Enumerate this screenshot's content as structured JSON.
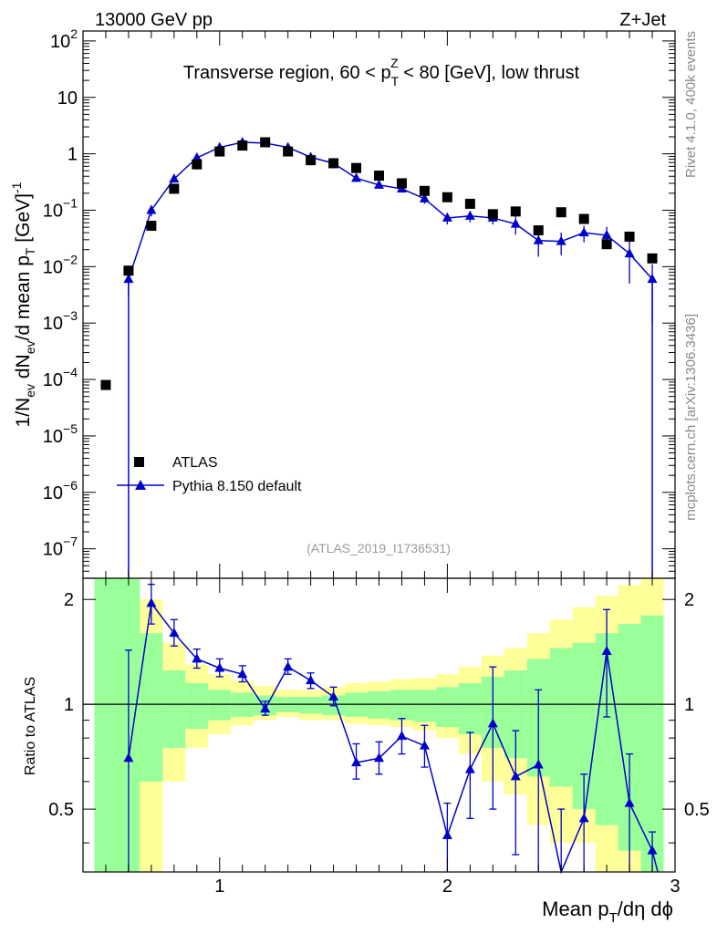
{
  "header": {
    "left": "13000 GeV pp",
    "right": "Z+Jet"
  },
  "side_labels": {
    "rivet": "Rivet 4.1.0,  400k events",
    "mcplots": "mcplots.cern.ch [arXiv:1306.3436]"
  },
  "chart_data": [
    {
      "type": "scatter",
      "title": "Transverse region, 60 < p_T^Z < 80 [GeV], low thrust",
      "title_parts": {
        "a": "Transverse region, 60 < p",
        "sup": "Z",
        "sub": "T",
        "b": " < 80 [GeV], low thrust"
      },
      "analysis_label": "(ATLAS_2019_I1736531)",
      "ylabel": "1/N_ev dN_ev/d mean p_T [GeV]^-1",
      "yscale": "log",
      "ylim": [
        3e-08,
        150
      ],
      "xlim": [
        0.4,
        3.0
      ],
      "y_ticks": [
        {
          "v": 100,
          "m": "10",
          "e": "2"
        },
        {
          "v": 10,
          "m": "10",
          "e": ""
        },
        {
          "v": 1,
          "m": "1",
          "e": ""
        },
        {
          "v": 0.1,
          "m": "10",
          "e": "−1"
        },
        {
          "v": 0.01,
          "m": "10",
          "e": "−2"
        },
        {
          "v": 0.001,
          "m": "10",
          "e": "−3"
        },
        {
          "v": 0.0001,
          "m": "10",
          "e": "−4"
        },
        {
          "v": 1e-05,
          "m": "10",
          "e": "−5"
        },
        {
          "v": 1e-06,
          "m": "10",
          "e": "−6"
        },
        {
          "v": 1e-07,
          "m": "10",
          "e": "−7"
        }
      ],
      "legend": {
        "atlas": "ATLAS",
        "pythia": "Pythia 8.150 default",
        "placement": "lower-left"
      },
      "series": [
        {
          "name": "ATLAS",
          "x": [
            0.5,
            0.6,
            0.7,
            0.8,
            0.9,
            1.0,
            1.1,
            1.2,
            1.3,
            1.4,
            1.5,
            1.6,
            1.7,
            1.8,
            1.9,
            2.0,
            2.1,
            2.2,
            2.3,
            2.4,
            2.5,
            2.6,
            2.7,
            2.8,
            2.9
          ],
          "y": [
            8e-05,
            0.0085,
            0.053,
            0.24,
            0.65,
            1.1,
            1.4,
            1.6,
            1.1,
            0.77,
            0.68,
            0.56,
            0.41,
            0.3,
            0.22,
            0.17,
            0.13,
            0.085,
            0.095,
            0.044,
            0.092,
            0.07,
            0.025,
            0.034,
            0.014
          ]
        },
        {
          "name": "Pythia 8.150 default",
          "x": [
            0.6,
            0.7,
            0.8,
            0.9,
            1.0,
            1.1,
            1.2,
            1.3,
            1.4,
            1.5,
            1.6,
            1.7,
            1.8,
            1.9,
            2.0,
            2.1,
            2.2,
            2.3,
            2.4,
            2.5,
            2.6,
            2.7,
            2.8,
            2.9
          ],
          "y": [
            0.006,
            0.1,
            0.36,
            0.85,
            1.3,
            1.6,
            1.55,
            1.3,
            0.87,
            0.68,
            0.37,
            0.28,
            0.24,
            0.16,
            0.073,
            0.079,
            0.073,
            0.057,
            0.029,
            0.028,
            0.04,
            0.036,
            0.017,
            0.006
          ],
          "err": [
            0.003,
            0.022,
            0.05,
            0.1,
            0.14,
            0.15,
            0.14,
            0.12,
            0.09,
            0.07,
            0.05,
            0.04,
            0.035,
            0.03,
            0.017,
            0.018,
            0.017,
            0.02,
            0.014,
            0.012,
            0.013,
            0.015,
            0.012,
            0.005
          ]
        }
      ]
    },
    {
      "type": "line",
      "ylabel": "Ratio to ATLAS",
      "xlabel": "Mean p_T/dη dϕ",
      "xlabel_parts": {
        "a": "Mean p",
        "sub": "T",
        "b": "/dη dϕ"
      },
      "xlim": [
        0.4,
        3.0
      ],
      "ylim": [
        0.33,
        2.3
      ],
      "x_ticks": [
        1,
        2,
        3
      ],
      "y_ticks": [
        0.5,
        1,
        2
      ],
      "reference_line": 1,
      "bands": {
        "edges": [
          0.45,
          0.55,
          0.65,
          0.75,
          0.85,
          0.95,
          1.05,
          1.15,
          1.25,
          1.35,
          1.45,
          1.55,
          1.65,
          1.75,
          1.85,
          1.95,
          2.05,
          2.15,
          2.25,
          2.35,
          2.45,
          2.55,
          2.65,
          2.75,
          2.85,
          2.95
        ],
        "yellow_lo": [
          0.33,
          0.33,
          0.33,
          0.6,
          0.75,
          0.82,
          0.87,
          0.9,
          0.92,
          0.9,
          0.9,
          0.88,
          0.87,
          0.86,
          0.84,
          0.8,
          0.72,
          0.6,
          0.55,
          0.45,
          0.4,
          0.4,
          0.33,
          0.33,
          0.33
        ],
        "green_lo": [
          0.33,
          0.33,
          0.6,
          0.75,
          0.85,
          0.9,
          0.92,
          0.93,
          0.95,
          0.94,
          0.93,
          0.92,
          0.91,
          0.9,
          0.89,
          0.86,
          0.82,
          0.75,
          0.7,
          0.62,
          0.58,
          0.5,
          0.45,
          0.38,
          0.33
        ],
        "green_hi": [
          2.3,
          2.3,
          1.6,
          1.25,
          1.15,
          1.1,
          1.08,
          1.06,
          1.05,
          1.05,
          1.06,
          1.08,
          1.09,
          1.1,
          1.1,
          1.12,
          1.15,
          1.2,
          1.25,
          1.35,
          1.45,
          1.5,
          1.6,
          1.7,
          1.8
        ],
        "yellow_hi": [
          2.3,
          2.3,
          2.0,
          1.5,
          1.3,
          1.22,
          1.17,
          1.13,
          1.1,
          1.1,
          1.12,
          1.15,
          1.16,
          1.18,
          1.19,
          1.22,
          1.28,
          1.38,
          1.45,
          1.6,
          1.75,
          1.9,
          2.05,
          2.2,
          2.3
        ]
      },
      "series": [
        {
          "name": "Pythia 8.150 default / ATLAS",
          "x": [
            0.6,
            0.7,
            0.8,
            0.9,
            1.0,
            1.1,
            1.2,
            1.3,
            1.4,
            1.5,
            1.6,
            1.7,
            1.8,
            1.9,
            2.0,
            2.1,
            2.2,
            2.3,
            2.4,
            2.5,
            2.6,
            2.7,
            2.8,
            2.9
          ],
          "y": [
            0.7,
            1.95,
            1.6,
            1.35,
            1.27,
            1.22,
            0.97,
            1.28,
            1.17,
            1.05,
            0.68,
            0.7,
            0.81,
            0.76,
            0.42,
            0.65,
            0.88,
            0.62,
            0.67,
            0.3,
            0.47,
            1.42,
            0.52,
            0.38
          ],
          "err_lo": [
            0.37,
            0.25,
            0.13,
            0.08,
            0.07,
            0.06,
            0.04,
            0.06,
            0.06,
            0.06,
            0.07,
            0.07,
            0.09,
            0.1,
            0.09,
            0.18,
            0.38,
            0.25,
            0.4,
            0.2,
            0.15,
            0.5,
            0.2,
            0.05
          ],
          "err_hi": [
            0.73,
            0.26,
            0.15,
            0.09,
            0.08,
            0.07,
            0.05,
            0.07,
            0.06,
            0.07,
            0.09,
            0.08,
            0.1,
            0.11,
            0.1,
            0.18,
            0.4,
            0.22,
            0.43,
            0.2,
            0.16,
            0.45,
            0.2,
            0.05
          ]
        }
      ]
    }
  ]
}
